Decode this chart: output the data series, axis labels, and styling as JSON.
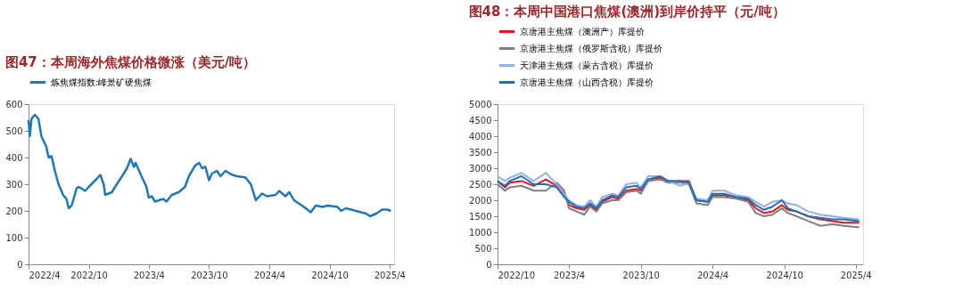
{
  "chart_data": [
    {
      "type": "line",
      "title": "图47：本周海外焦煤价格微涨（美元/吨）",
      "legend": "top",
      "grid": false,
      "line_style": "solid",
      "marker": "none",
      "xlim": [
        "2022-04-01",
        "2025-04-15"
      ],
      "ylim": [
        0,
        600
      ],
      "yticks": [
        0,
        100,
        200,
        300,
        400,
        500,
        600
      ],
      "xticks": [
        {
          "value": "2022-04-01",
          "label": "2022/4"
        },
        {
          "value": "2022-10-01",
          "label": "2022/10"
        },
        {
          "value": "2023-04-01",
          "label": "2023/4"
        },
        {
          "value": "2023-10-01",
          "label": "2023/10"
        },
        {
          "value": "2024-04-01",
          "label": "2024/4"
        },
        {
          "value": "2024-10-01",
          "label": "2024/10"
        },
        {
          "value": "2025-04-01",
          "label": "2025/4"
        }
      ],
      "series": [
        {
          "name": "炼焦煤指数:峰景矿硬焦煤",
          "color": "#1f77b4",
          "x": [
            "2022-04-01",
            "2022-04-05",
            "2022-04-10",
            "2022-04-20",
            "2022-05-01",
            "2022-05-10",
            "2022-05-25",
            "2022-06-01",
            "2022-06-10",
            "2022-06-20",
            "2022-07-01",
            "2022-07-15",
            "2022-07-25",
            "2022-08-01",
            "2022-08-10",
            "2022-08-25",
            "2022-09-01",
            "2022-09-20",
            "2022-10-01",
            "2022-10-25",
            "2022-11-05",
            "2022-11-15",
            "2022-11-20",
            "2022-12-10",
            "2022-12-25",
            "2023-01-10",
            "2023-01-25",
            "2023-02-05",
            "2023-02-15",
            "2023-02-20",
            "2023-03-10",
            "2023-03-25",
            "2023-04-01",
            "2023-04-10",
            "2023-04-20",
            "2023-05-15",
            "2023-05-25",
            "2023-06-10",
            "2023-07-01",
            "2023-07-20",
            "2023-08-01",
            "2023-08-20",
            "2023-09-01",
            "2023-09-10",
            "2023-09-20",
            "2023-10-01",
            "2023-10-10",
            "2023-10-25",
            "2023-11-05",
            "2023-11-20",
            "2023-12-10",
            "2023-12-25",
            "2024-01-20",
            "2024-02-05",
            "2024-02-20",
            "2024-03-10",
            "2024-03-25",
            "2024-04-20",
            "2024-05-01",
            "2024-05-20",
            "2024-06-01",
            "2024-06-15",
            "2024-07-15",
            "2024-08-05",
            "2024-08-20",
            "2024-09-10",
            "2024-09-25",
            "2024-10-25",
            "2024-11-05",
            "2024-11-20",
            "2024-12-20",
            "2025-01-20",
            "2025-02-01",
            "2025-02-20",
            "2025-03-10",
            "2025-03-25",
            "2025-04-05"
          ],
          "values": [
            540,
            480,
            545,
            560,
            545,
            480,
            440,
            400,
            405,
            350,
            300,
            260,
            245,
            210,
            220,
            285,
            290,
            275,
            290,
            320,
            335,
            300,
            260,
            270,
            300,
            330,
            360,
            395,
            365,
            380,
            330,
            290,
            250,
            255,
            235,
            245,
            235,
            260,
            270,
            290,
            330,
            370,
            380,
            360,
            365,
            315,
            340,
            350,
            330,
            350,
            335,
            330,
            325,
            300,
            240,
            265,
            255,
            260,
            275,
            255,
            270,
            240,
            215,
            195,
            220,
            215,
            220,
            215,
            200,
            210,
            200,
            190,
            180,
            190,
            205,
            205,
            200
          ]
        }
      ]
    },
    {
      "type": "line",
      "title": "图48：本周中国港口焦煤(澳洲)到岸价持平（元/吨）",
      "legend": "top",
      "grid": false,
      "line_style": "solid",
      "marker": "none",
      "xlim": [
        "2022-10-01",
        "2025-04-20"
      ],
      "ylim": [
        0,
        5000
      ],
      "yticks": [
        0,
        500,
        1000,
        1500,
        2000,
        2500,
        3000,
        3500,
        4000,
        4500,
        5000
      ],
      "xticks": [
        {
          "value": "2022-10-01",
          "label": "2022/10"
        },
        {
          "value": "2023-04-01",
          "label": "2023/4"
        },
        {
          "value": "2023-10-01",
          "label": "2023/10"
        },
        {
          "value": "2024-04-01",
          "label": "2024/4"
        },
        {
          "value": "2024-10-01",
          "label": "2024/10"
        },
        {
          "value": "2025-04-01",
          "label": "2025/4"
        }
      ],
      "x": [
        "2022-10-01",
        "2022-10-20",
        "2022-11-01",
        "2022-12-01",
        "2023-01-01",
        "2023-02-01",
        "2023-03-01",
        "2023-03-20",
        "2023-04-01",
        "2023-04-20",
        "2023-05-10",
        "2023-05-25",
        "2023-06-10",
        "2023-06-25",
        "2023-07-20",
        "2023-08-05",
        "2023-08-25",
        "2023-09-20",
        "2023-10-01",
        "2023-10-20",
        "2023-11-20",
        "2023-12-10",
        "2024-01-10",
        "2024-02-01",
        "2024-02-20",
        "2024-03-20",
        "2024-04-01",
        "2024-05-01",
        "2024-06-01",
        "2024-07-01",
        "2024-07-20",
        "2024-08-10",
        "2024-09-01",
        "2024-09-25",
        "2024-10-10",
        "2024-11-01",
        "2024-12-01",
        "2025-01-01",
        "2025-02-01",
        "2025-03-01",
        "2025-04-10"
      ],
      "series": [
        {
          "name": "京唐港主焦煤（澳洲产）库提价",
          "color": "#e8141c",
          "values": [
            2600,
            2400,
            2550,
            2600,
            2450,
            2650,
            2450,
            2200,
            1850,
            1750,
            1700,
            1850,
            1700,
            1950,
            2100,
            2050,
            2300,
            2350,
            2300,
            2650,
            2700,
            2600,
            2600,
            2600,
            2000,
            1950,
            2150,
            2150,
            2100,
            2000,
            1750,
            1600,
            1650,
            1850,
            1700,
            1650,
            1500,
            1400,
            1350,
            1300,
            1300
          ]
        },
        {
          "name": "京唐港主焦煤（俄罗斯含税）库提价",
          "color": "#7f7f7f",
          "values": [
            2500,
            2300,
            2400,
            2450,
            2300,
            2300,
            2550,
            2300,
            1750,
            1650,
            1550,
            1800,
            1650,
            1900,
            2000,
            2000,
            2250,
            2300,
            2200,
            2600,
            2650,
            2550,
            2550,
            2500,
            1900,
            1850,
            2100,
            2100,
            2050,
            1950,
            1600,
            1500,
            1550,
            1750,
            1600,
            1500,
            1350,
            1200,
            1250,
            1200,
            1150
          ]
        },
        {
          "name": "天津港主焦煤（蒙古含税）库提价",
          "color": "#8fb4e3",
          "values": [
            2750,
            2600,
            2700,
            2850,
            2600,
            2850,
            2500,
            2200,
            2000,
            1850,
            1800,
            2000,
            1800,
            2100,
            2200,
            2150,
            2500,
            2550,
            2400,
            2750,
            2750,
            2600,
            2450,
            2550,
            2050,
            2000,
            2300,
            2300,
            2150,
            2100,
            1950,
            1800,
            1950,
            2000,
            1900,
            1850,
            1650,
            1550,
            1500,
            1450,
            1400
          ]
        },
        {
          "name": "京唐港主焦煤（山西含税）库提价",
          "color": "#1f6fb8",
          "values": [
            2600,
            2450,
            2600,
            2750,
            2500,
            2500,
            2400,
            2100,
            1950,
            1800,
            1750,
            1900,
            1750,
            2000,
            2150,
            2100,
            2400,
            2450,
            2350,
            2650,
            2750,
            2600,
            2600,
            2550,
            2000,
            1950,
            2200,
            2200,
            2100,
            2050,
            1850,
            1700,
            1800,
            2000,
            1750,
            1650,
            1500,
            1450,
            1400,
            1400,
            1350
          ]
        }
      ]
    }
  ]
}
